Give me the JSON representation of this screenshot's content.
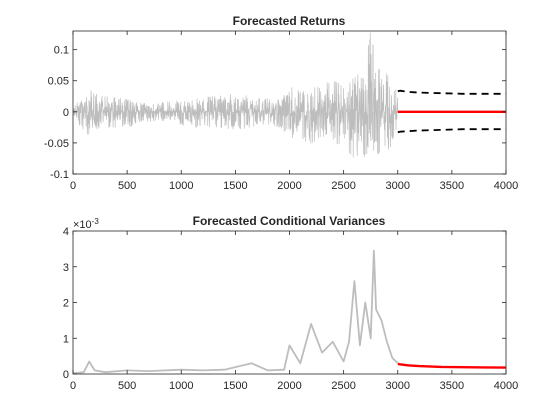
{
  "chart_data": [
    {
      "type": "line",
      "title": "Forecasted Returns",
      "xlabel": "",
      "ylabel": "",
      "xlim": [
        0,
        4000
      ],
      "ylim": [
        -0.1,
        0.13
      ],
      "x_ticks": [
        0,
        500,
        1000,
        1500,
        2000,
        2500,
        3000,
        3500,
        4000
      ],
      "x_tick_labels": [
        "0",
        "500",
        "1000",
        "1500",
        "2000",
        "2500",
        "3000",
        "3500",
        "4000"
      ],
      "y_ticks": [
        -0.1,
        -0.05,
        0,
        0.05,
        0.1
      ],
      "y_tick_labels": [
        "-0.1",
        "-0.05",
        "0",
        "0.05",
        "0.1"
      ],
      "grid": false,
      "series": [
        {
          "color": "#bdbdbd",
          "style": "solid",
          "x": [
            0,
            150,
            300,
            500,
            700,
            900,
            1100,
            1300,
            1500,
            1700,
            1900,
            2000,
            2100,
            2200,
            2300,
            2400,
            2500,
            2600,
            2700,
            2750,
            2800,
            2900,
            3000
          ],
          "y_upper_envelope": [
            0.01,
            0.035,
            0.025,
            0.02,
            0.012,
            0.018,
            0.02,
            0.025,
            0.03,
            0.022,
            0.02,
            0.045,
            0.035,
            0.04,
            0.045,
            0.05,
            0.045,
            0.06,
            0.065,
            0.135,
            0.08,
            0.06,
            0.03
          ],
          "y_lower_envelope": [
            -0.01,
            -0.04,
            -0.025,
            -0.025,
            -0.015,
            -0.02,
            -0.025,
            -0.025,
            -0.03,
            -0.022,
            -0.025,
            -0.04,
            -0.045,
            -0.06,
            -0.04,
            -0.05,
            -0.055,
            -0.1,
            -0.07,
            -0.06,
            -0.07,
            -0.07,
            -0.03
          ]
        },
        {
          "color": "#ff0000",
          "style": "solid",
          "x": [
            3000,
            4000
          ],
          "y": [
            0.0,
            0.0
          ]
        },
        {
          "color": "#000000",
          "style": "dashed",
          "x": [
            3000,
            3020,
            3100,
            3200,
            3400,
            3600,
            3800,
            4000
          ],
          "y": [
            0.033,
            0.034,
            0.032,
            0.031,
            0.03,
            0.029,
            0.029,
            0.029
          ]
        },
        {
          "color": "#000000",
          "style": "dashed",
          "x": [
            3000,
            3020,
            3100,
            3200,
            3400,
            3600,
            3800,
            4000
          ],
          "y": [
            -0.033,
            -0.032,
            -0.031,
            -0.03,
            -0.029,
            -0.028,
            -0.028,
            -0.028
          ]
        }
      ]
    },
    {
      "type": "line",
      "title": "Forecasted Conditional Variances",
      "xlabel": "",
      "ylabel": "",
      "y_multiplier": "×10",
      "y_multiplier_exp": "-3",
      "xlim": [
        0,
        4000
      ],
      "ylim": [
        0,
        4
      ],
      "x_ticks": [
        0,
        500,
        1000,
        1500,
        2000,
        2500,
        3000,
        3500,
        4000
      ],
      "x_tick_labels": [
        "0",
        "500",
        "1000",
        "1500",
        "2000",
        "2500",
        "3000",
        "3500",
        "4000"
      ],
      "y_ticks": [
        0,
        1,
        2,
        3,
        4
      ],
      "y_tick_labels": [
        "0",
        "1",
        "2",
        "3",
        "4"
      ],
      "grid": false,
      "series": [
        {
          "color": "#bdbdbd",
          "style": "solid",
          "x": [
            0,
            100,
            150,
            200,
            300,
            500,
            700,
            1000,
            1200,
            1400,
            1650,
            1800,
            1950,
            2000,
            2100,
            2200,
            2300,
            2400,
            2500,
            2550,
            2600,
            2650,
            2700,
            2750,
            2780,
            2800,
            2850,
            2900,
            2950,
            3000
          ],
          "y": [
            0.02,
            0.05,
            0.35,
            0.1,
            0.05,
            0.1,
            0.08,
            0.12,
            0.1,
            0.12,
            0.3,
            0.1,
            0.12,
            0.8,
            0.3,
            1.4,
            0.6,
            0.9,
            0.35,
            0.9,
            2.6,
            0.8,
            2.0,
            1.0,
            3.45,
            1.8,
            1.5,
            0.9,
            0.45,
            0.3
          ]
        },
        {
          "color": "#ff0000",
          "style": "solid",
          "x": [
            3000,
            3020,
            3100,
            3200,
            3400,
            3600,
            3800,
            4000
          ],
          "y": [
            0.28,
            0.27,
            0.24,
            0.22,
            0.2,
            0.19,
            0.185,
            0.18
          ]
        }
      ]
    }
  ]
}
